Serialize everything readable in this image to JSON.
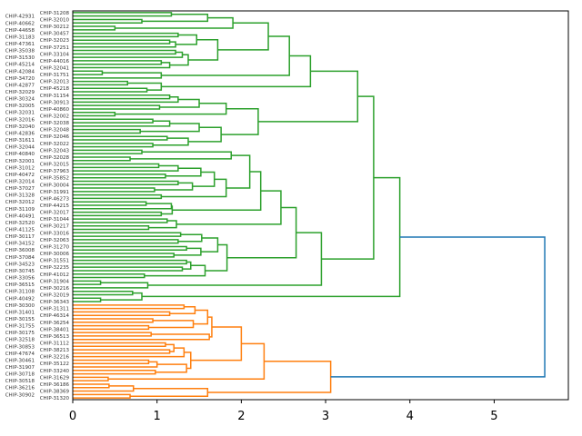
{
  "chart_data": {
    "type": "dendrogram",
    "orientation": "left",
    "xlim": [
      0,
      5.88
    ],
    "xticks": [
      0,
      1,
      2,
      3,
      4,
      5
    ],
    "xtick_labels": [
      "0",
      "1",
      "2",
      "3",
      "4",
      "5"
    ],
    "colors": {
      "cluster_1": "#2ca02c",
      "cluster_2": "#ff7f0e",
      "above_threshold": "#1f77b4"
    },
    "tree": [
      5.6,
      [
        3.88,
        [
          3.57,
          [
            3.38,
            [
              2.82,
              [
                2.57,
                [
                  2.32,
                  [
                    1.9,
                    [
                      1.6,
                      [
                        1.17,
                        "CHIP-31208",
                        "CHIP-42931"
                      ],
                      [
                        0.82,
                        "CHIP-32010",
                        "CHIP-40662"
                      ]
                    ],
                    [
                      0.5,
                      "CHIP-30212",
                      "CHIP-44658"
                    ]
                  ],
                  [
                    1.72,
                    [
                      1.47,
                      [
                        1.25,
                        "CHIP-30457",
                        "CHIP-31183"
                      ],
                      [
                        1.22,
                        [
                          1.15,
                          "CHIP-32023",
                          "CHIP-47361"
                        ],
                        "CHIP-37251"
                      ]
                    ],
                    [
                      1.37,
                      [
                        1.3,
                        [
                          1.22,
                          "CHIP-35038",
                          "CHIP-33104"
                        ],
                        "CHIP-31530"
                      ],
                      [
                        1.15,
                        [
                          1.05,
                          "CHIP-44016",
                          "CHIP-45214"
                        ],
                        "CHIP-32041"
                      ]
                    ]
                  ]
                ],
                [
                  1.05,
                  [
                    0.35,
                    "CHIP-42084",
                    "CHIP-31751"
                  ],
                  "CHIP-34720"
                ]
              ],
              [
                1.05,
                [
                  0.65,
                  "CHIP-32013",
                  "CHIP-42877"
                ],
                [
                  0.88,
                  "CHIP-45218",
                  "CHIP-32029"
                ]
              ]
            ],
            [
              2.2,
              [
                1.82,
                [
                  1.5,
                  [
                    1.25,
                    [
                      1.15,
                      "CHIP-31154",
                      "CHIP-30324"
                    ],
                    "CHIP-30913"
                  ],
                  [
                    1.03,
                    "CHIP-32005",
                    "CHIP-40860"
                  ]
                ],
                [
                  0.5,
                  "CHIP-32031",
                  "CHIP-32002"
                ]
              ],
              [
                1.76,
                [
                  1.5,
                  [
                    1.15,
                    [
                      0.95,
                      "CHIP-32016",
                      "CHIP-32038"
                    ],
                    "CHIP-32040"
                  ],
                  [
                    0.8,
                    "CHIP-32048",
                    "CHIP-42836"
                  ]
                ],
                [
                  1.37,
                  [
                    1.12,
                    "CHIP-32046",
                    "CHIP-31611"
                  ],
                  [
                    0.95,
                    "CHIP-32022",
                    "CHIP-32044"
                  ]
                ]
              ]
            ]
          ],
          [
            2.95,
            [
              2.65,
              [
                2.47,
                [
                  2.23,
                  [
                    2.1,
                    [
                      1.88,
                      [
                        0.82,
                        "CHIP-32043",
                        "CHIP-40840"
                      ],
                      [
                        0.68,
                        "CHIP-32028",
                        "CHIP-32001"
                      ]
                    ],
                    [
                      1.82,
                      [
                        1.68,
                        [
                          1.52,
                          [
                            1.25,
                            [
                              1.02,
                              "CHIP-32015",
                              "CHIP-31012"
                            ],
                            "CHIP-37963"
                          ],
                          [
                            1.1,
                            "CHIP-40472",
                            "CHIP-35852"
                          ]
                        ],
                        [
                          1.42,
                          [
                            1.25,
                            "CHIP-32014",
                            "CHIP-30004"
                          ],
                          [
                            0.97,
                            "CHIP-37027",
                            "CHIP-31991"
                          ]
                        ]
                      ],
                      [
                        1.05,
                        "CHIP-31328",
                        "CHIP-46273"
                      ]
                    ]
                  ],
                  [
                    1.18,
                    [
                      1.17,
                      [
                        0.87,
                        "CHIP-32012",
                        "CHIP-44215"
                      ],
                      "CHIP-31109"
                    ],
                    [
                      1.05,
                      "CHIP-32017",
                      "CHIP-40491"
                    ]
                  ]
                ],
                [
                  1.23,
                  [
                    1.12,
                    "CHIP-31044",
                    "CHIP-32520"
                  ],
                  [
                    0.9,
                    "CHIP-30217",
                    "CHIP-41125"
                  ]
                ]
              ],
              [
                1.83,
                [
                  1.72,
                  [
                    1.53,
                    [
                      1.28,
                      "CHIP-33016",
                      "CHIP-30117"
                    ],
                    [
                      1.25,
                      "CHIP-32063",
                      "CHIP-34152"
                    ]
                  ],
                  [
                    1.52,
                    [
                      1.35,
                      "CHIP-31270",
                      "CHIP-36008"
                    ],
                    [
                      1.2,
                      "CHIP-30006",
                      "CHIP-37084"
                    ]
                  ]
                ],
                [
                  1.57,
                  [
                    1.4,
                    [
                      1.35,
                      "CHIP-31551",
                      "CHIP-34523"
                    ],
                    [
                      1.3,
                      "CHIP-32235",
                      "CHIP-30745"
                    ]
                  ],
                  [
                    0.85,
                    "CHIP-41012",
                    "CHIP-33056"
                  ]
                ]
              ]
            ],
            [
              0.89,
              [
                0.33,
                "CHIP-31904",
                "CHIP-36515"
              ],
              "CHIP-30216"
            ]
          ]
        ],
        [
          0.82,
          [
            0.71,
            "CHIP-31108",
            "CHIP-32019"
          ],
          [
            0.33,
            "CHIP-40492",
            "CHIP-36343"
          ]
        ],
        "#2ca02c"
      ],
      [
        3.06,
        [
          2.27,
          [
            2.0,
            [
              1.65,
              [
                1.6,
                [
                  1.45,
                  [
                    1.32,
                    "CHIP-30300",
                    "CHIP-31311"
                  ],
                  [
                    1.15,
                    "CHIP-31401",
                    "CHIP-46314"
                  ]
                ],
                [
                  1.43,
                  [
                    0.95,
                    "CHIP-30155",
                    "CHIP-36254"
                  ],
                  [
                    0.9,
                    "CHIP-31755",
                    "CHIP-38401"
                  ]
                ]
              ],
              [
                1.62,
                [
                  0.93,
                  "CHIP-30175",
                  "CHIP-36513"
                ],
                "CHIP-32518"
              ]
            ],
            [
              1.4,
              [
                1.32,
                [
                  1.2,
                  [
                    1.1,
                    "CHIP-31112",
                    "CHIP-30853"
                  ],
                  [
                    1.15,
                    "CHIP-38213",
                    "CHIP-47674"
                  ]
                ],
                "CHIP-32216"
              ],
              [
                1.35,
                [
                  1.0,
                  [
                    0.9,
                    "CHIP-30461",
                    "CHIP-35122"
                  ],
                  "CHIP-31907"
                ],
                [
                  0.98,
                  "CHIP-33240",
                  "CHIP-30718"
                ]
              ]
            ]
          ],
          [
            0.42,
            "CHIP-31629",
            "CHIP-30518"
          ]
        ],
        [
          1.6,
          [
            0.72,
            [
              0.43,
              "CHIP-36186",
              "CHIP-36216"
            ],
            "CHIP-38369"
          ],
          [
            0.68,
            "CHIP-30902",
            "CHIP-31320"
          ]
        ],
        "#ff7f0e"
      ],
      "#1f77b4"
    ]
  }
}
